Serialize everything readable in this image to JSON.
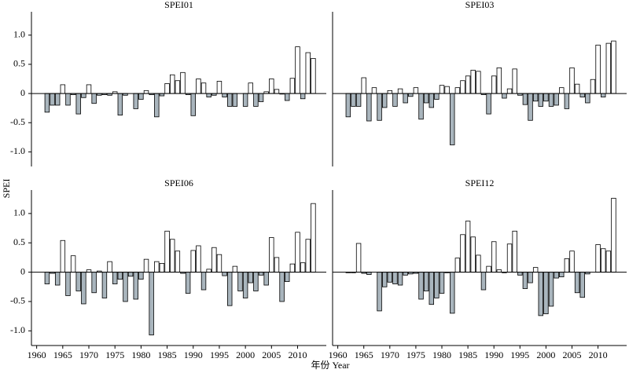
{
  "ylabel": "SPEI",
  "xlabel": "年份 Year",
  "chart_data": [
    {
      "type": "bar",
      "title": "SPEI01",
      "x": [
        1962,
        1963,
        1964,
        1965,
        1966,
        1967,
        1968,
        1969,
        1970,
        1971,
        1972,
        1973,
        1974,
        1975,
        1976,
        1977,
        1978,
        1979,
        1980,
        1981,
        1982,
        1983,
        1984,
        1985,
        1986,
        1987,
        1988,
        1989,
        1990,
        1991,
        1992,
        1993,
        1994,
        1995,
        1996,
        1997,
        1998,
        1999,
        2000,
        2001,
        2002,
        2003,
        2004,
        2005,
        2006,
        2007,
        2008,
        2009,
        2010,
        2011,
        2012,
        2013
      ],
      "values": [
        -0.32,
        -0.2,
        -0.2,
        0.15,
        -0.2,
        -0.02,
        -0.35,
        -0.07,
        0.15,
        -0.17,
        -0.03,
        -0.02,
        -0.03,
        0.03,
        -0.37,
        -0.03,
        0.0,
        -0.26,
        -0.1,
        0.05,
        -0.02,
        -0.4,
        -0.04,
        0.17,
        0.32,
        0.22,
        0.36,
        -0.02,
        -0.38,
        0.25,
        0.18,
        -0.06,
        -0.03,
        0.21,
        -0.06,
        -0.22,
        -0.22,
        0.0,
        -0.22,
        0.18,
        -0.22,
        -0.14,
        0.03,
        0.25,
        0.07,
        -0.01,
        -0.12,
        0.26,
        0.8,
        -0.09,
        0.7,
        0.6
      ],
      "positive_color": "#ffffff",
      "negative_color": "#a9b5bd",
      "xlim": [
        1959,
        2015.5
      ],
      "ylim": [
        -1.25,
        1.4
      ],
      "yticks": [
        {
          "value": -1,
          "label": "-1.0"
        },
        {
          "value": -0.5,
          "label": "-0.5"
        },
        0,
        {
          "value": 0.5,
          "label": "0.5"
        },
        {
          "value": 1,
          "label": "1.0"
        }
      ]
    },
    {
      "type": "bar",
      "title": "SPEI03",
      "x": [
        1962,
        1963,
        1964,
        1965,
        1966,
        1967,
        1968,
        1969,
        1970,
        1971,
        1972,
        1973,
        1974,
        1975,
        1976,
        1977,
        1978,
        1979,
        1980,
        1981,
        1982,
        1983,
        1984,
        1985,
        1986,
        1987,
        1988,
        1989,
        1990,
        1991,
        1992,
        1993,
        1994,
        1995,
        1996,
        1997,
        1998,
        1999,
        2000,
        2001,
        2002,
        2003,
        2004,
        2005,
        2006,
        2007,
        2008,
        2009,
        2010,
        2011,
        2012,
        2013
      ],
      "values": [
        -0.4,
        -0.22,
        -0.22,
        0.27,
        -0.47,
        0.1,
        -0.46,
        -0.24,
        0.05,
        -0.22,
        0.08,
        -0.16,
        -0.05,
        0.1,
        -0.44,
        -0.16,
        -0.24,
        -0.1,
        0.14,
        0.12,
        -0.88,
        0.1,
        0.22,
        0.3,
        0.4,
        0.38,
        -0.02,
        -0.35,
        0.3,
        0.44,
        -0.08,
        0.08,
        0.42,
        -0.03,
        -0.19,
        -0.46,
        -0.13,
        -0.22,
        -0.13,
        -0.22,
        -0.2,
        0.1,
        -0.26,
        0.44,
        0.16,
        -0.06,
        -0.16,
        0.24,
        0.83,
        -0.06,
        0.86,
        0.9
      ],
      "positive_color": "#ffffff",
      "negative_color": "#a9b5bd",
      "xlim": [
        1959,
        2015.5
      ],
      "ylim": [
        -1.25,
        1.4
      ]
    },
    {
      "type": "bar",
      "title": "SPEI06",
      "x": [
        1962,
        1963,
        1964,
        1965,
        1966,
        1967,
        1968,
        1969,
        1970,
        1971,
        1972,
        1973,
        1974,
        1975,
        1976,
        1977,
        1978,
        1979,
        1980,
        1981,
        1982,
        1983,
        1984,
        1985,
        1986,
        1987,
        1988,
        1989,
        1990,
        1991,
        1992,
        1993,
        1994,
        1995,
        1996,
        1997,
        1998,
        1999,
        2000,
        2001,
        2002,
        2003,
        2004,
        2005,
        2006,
        2007,
        2008,
        2009,
        2010,
        2011,
        2012,
        2013
      ],
      "values": [
        -0.2,
        -0.02,
        -0.22,
        0.54,
        -0.4,
        0.28,
        -0.32,
        -0.54,
        0.04,
        -0.35,
        0.02,
        -0.44,
        0.18,
        -0.2,
        -0.12,
        -0.5,
        -0.07,
        -0.46,
        -0.12,
        0.22,
        -1.07,
        0.18,
        0.15,
        0.7,
        0.56,
        0.36,
        -0.02,
        -0.36,
        0.37,
        0.45,
        -0.3,
        0.05,
        0.42,
        0.3,
        -0.06,
        -0.57,
        0.1,
        -0.32,
        -0.44,
        -0.18,
        -0.32,
        -0.05,
        -0.22,
        0.59,
        0.25,
        -0.5,
        -0.16,
        0.14,
        0.68,
        0.16,
        0.56,
        1.17
      ],
      "positive_color": "#ffffff",
      "negative_color": "#a9b5bd",
      "xlim": [
        1959,
        2015.5
      ],
      "ylim": [
        -1.25,
        1.4
      ],
      "xticks": [
        1960,
        1965,
        1970,
        1975,
        1980,
        1985,
        1990,
        1995,
        2000,
        2005,
        2010
      ],
      "yticks": [
        {
          "value": -1,
          "label": "-1.0"
        },
        {
          "value": -0.5,
          "label": "-0.5"
        },
        0,
        {
          "value": 0.5,
          "label": "0.5"
        },
        {
          "value": 1,
          "label": "1.0"
        }
      ]
    },
    {
      "type": "bar",
      "title": "SPEI12",
      "x": [
        1962,
        1963,
        1964,
        1965,
        1966,
        1967,
        1968,
        1969,
        1970,
        1971,
        1972,
        1973,
        1974,
        1975,
        1976,
        1977,
        1978,
        1979,
        1980,
        1981,
        1982,
        1983,
        1984,
        1985,
        1986,
        1987,
        1988,
        1989,
        1990,
        1991,
        1992,
        1993,
        1994,
        1995,
        1996,
        1997,
        1998,
        1999,
        2000,
        2001,
        2002,
        2003,
        2004,
        2005,
        2006,
        2007,
        2008,
        2009,
        2010,
        2011,
        2012,
        2013
      ],
      "values": [
        -0.01,
        -0.01,
        0.49,
        -0.02,
        -0.04,
        0.0,
        -0.66,
        -0.25,
        -0.17,
        -0.2,
        -0.22,
        -0.05,
        -0.03,
        -0.02,
        -0.46,
        -0.32,
        -0.55,
        -0.44,
        -0.36,
        -0.01,
        -0.7,
        0.24,
        0.64,
        0.87,
        0.6,
        0.29,
        -0.3,
        0.1,
        0.52,
        0.04,
        -0.01,
        0.48,
        0.7,
        -0.05,
        -0.28,
        -0.18,
        0.08,
        -0.74,
        -0.71,
        -0.58,
        -0.1,
        -0.08,
        0.23,
        0.36,
        -0.35,
        -0.43,
        -0.03,
        0.0,
        0.47,
        0.4,
        0.36,
        1.26
      ],
      "positive_color": "#ffffff",
      "negative_color": "#a9b5bd",
      "xlim": [
        1959,
        2015.5
      ],
      "ylim": [
        -1.25,
        1.4
      ],
      "xticks": [
        1960,
        1965,
        1970,
        1975,
        1980,
        1985,
        1990,
        1995,
        2000,
        2005,
        2010
      ]
    }
  ]
}
